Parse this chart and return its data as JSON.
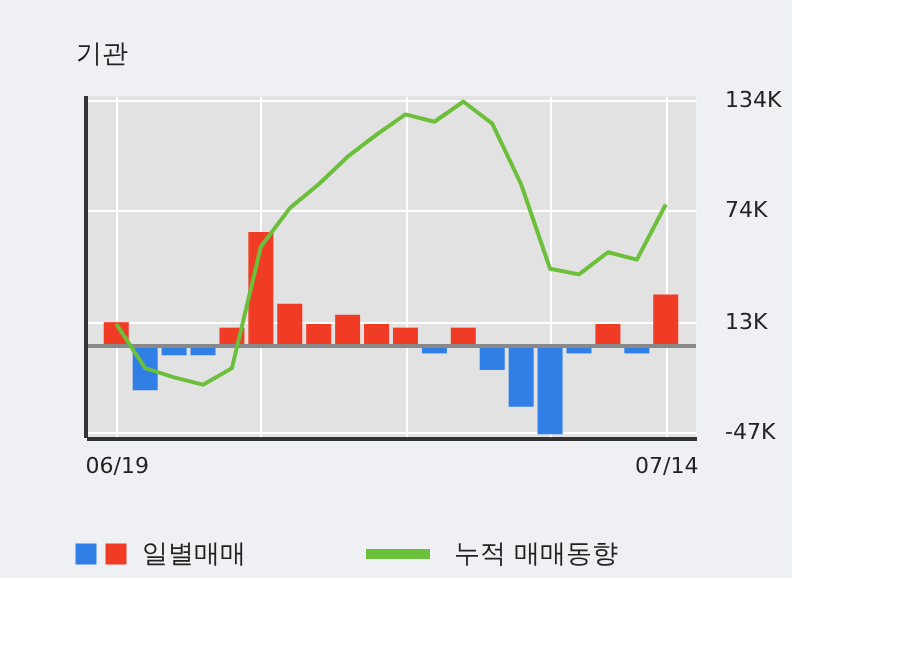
{
  "chart_data": {
    "type": "bar",
    "title": "기관",
    "categories": [
      "06/19",
      null,
      null,
      null,
      null,
      null,
      null,
      null,
      null,
      null,
      null,
      null,
      null,
      null,
      null,
      null,
      null,
      null,
      null,
      "07/14"
    ],
    "series": [
      {
        "name": "일별매매",
        "colors": [
          "#f03c24",
          "#2f7fe6",
          "#2f7fe6",
          "#2f7fe6",
          "#f03c24",
          "#f03c24",
          "#f03c24",
          "#f03c24",
          "#f03c24",
          "#f03c24",
          "#f03c24",
          "#2f7fe6",
          "#f03c24",
          "#2f7fe6",
          "#2f7fe6",
          "#2f7fe6",
          "#2f7fe6",
          "#f03c24",
          "#2f7fe6",
          "#f03c24"
        ],
        "values": [
          13,
          -24,
          -5,
          -5,
          10,
          62,
          23,
          12,
          17,
          12,
          10,
          -4,
          10,
          -13,
          -33,
          -48,
          -4,
          12,
          -4,
          28
        ]
      },
      {
        "name": "누적 매매동향",
        "type": "line",
        "color": "#6cbf3a",
        "values": [
          12,
          -12,
          -17,
          -21,
          -12,
          54,
          75,
          88,
          103,
          115,
          126,
          122,
          133,
          121,
          88,
          42,
          39,
          51,
          47,
          77
        ]
      }
    ],
    "ylim": [
      -50,
      136
    ],
    "yticks": [
      {
        "value": -47,
        "label": "-47K"
      },
      {
        "value": 13,
        "label": "13K"
      },
      {
        "value": 74,
        "label": "74K"
      },
      {
        "value": 134,
        "label": "134K"
      }
    ],
    "ref_lines": [
      {
        "axis": "y",
        "value": 0,
        "color": "#888888"
      }
    ],
    "grid": true,
    "legend": "bottom"
  }
}
